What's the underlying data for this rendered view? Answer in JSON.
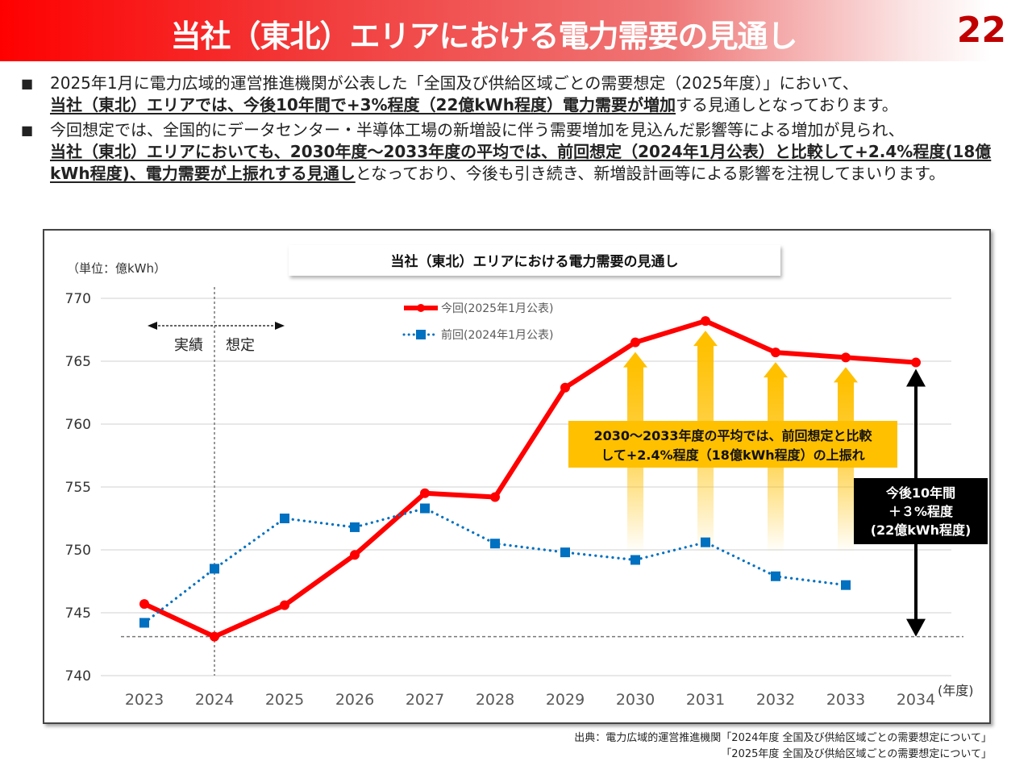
{
  "header": {
    "title": "当社（東北）エリアにおける電力需要の見通し",
    "page_number": "22",
    "gradient_start_color": "#ff0000",
    "page_number_color": "#c00000"
  },
  "bullets": [
    {
      "marker": "■",
      "segments": [
        {
          "text": "2025年1月に電力広域的運営推進機関が公表した「全国及び供給区域ごとの需要想定（2025年度）」において、",
          "strong": false
        },
        {
          "text": "当社（東北）エリアでは、今後10年間で+3%程度（22億kWh程度）電力需要が増加",
          "strong": true
        },
        {
          "text": "する見通しとなっております。",
          "strong": false
        }
      ]
    },
    {
      "marker": "■",
      "segments": [
        {
          "text": "今回想定では、全国的にデータセンター・半導体工場の新増設に伴う需要増加を見込んだ影響等による増加が見られ、",
          "strong": false
        },
        {
          "text": "当社（東北）エリアにおいても、2030年度～2033年度の平均では、前回想定（2024年1月公表）と比較して+2.4%程度(18億kWh程度)、電力需要が上振れする見通し",
          "strong": true
        },
        {
          "text": "となっており、今後も引き続き、新増設計画等による影響を注視してまいります。",
          "strong": false
        }
      ]
    }
  ],
  "chart_data": {
    "type": "line",
    "title": "当社（東北）エリアにおける電力需要の見通し",
    "unit_label": "（単位：億kWh）",
    "xlabel": "(年度)",
    "ylabel": "",
    "categories": [
      "2023",
      "2024",
      "2025",
      "2026",
      "2027",
      "2028",
      "2029",
      "2030",
      "2031",
      "2032",
      "2033",
      "2034"
    ],
    "ylim": [
      740,
      770
    ],
    "yticks": [
      740,
      745,
      750,
      755,
      760,
      765,
      770
    ],
    "grid": true,
    "legend_position": "top-center",
    "series": [
      {
        "name": "今回(2025年1月公表)",
        "color": "#ff0000",
        "style": "solid",
        "marker": "circle",
        "values": [
          745.7,
          743.1,
          745.6,
          749.6,
          754.5,
          754.2,
          762.9,
          766.5,
          768.2,
          765.7,
          765.3,
          764.9
        ]
      },
      {
        "name": "前回(2024年1月公表)",
        "color": "#0070c0",
        "style": "dotted",
        "marker": "square",
        "values": [
          744.2,
          748.5,
          752.5,
          751.8,
          753.3,
          750.5,
          749.8,
          749.2,
          750.6,
          747.9,
          747.2,
          null
        ]
      }
    ],
    "divider": {
      "between": "2024",
      "left_label": "実績",
      "right_label": "想定"
    },
    "baseline_reference": 743.1,
    "annotations": [
      {
        "id": "upward-revision",
        "text_lines": [
          "2030～2033年度の平均では、前回想定と比較",
          "して+2.4%程度（18億kWh程度）の上振れ"
        ],
        "background": "#ffc000",
        "arrow_years": [
          "2030",
          "2031",
          "2032",
          "2033"
        ]
      },
      {
        "id": "ten-year-growth",
        "text_lines": [
          "今後10年間",
          "＋３%程度",
          "(22億kWh程度)"
        ],
        "background": "#000000",
        "text_color": "#ffffff",
        "arrow_year": "2034"
      }
    ]
  },
  "source": {
    "lines": [
      "出典：電力広域的運営推進機関「2024年度 全国及び供給区域ごとの需要想定について」",
      "「2025年度 全国及び供給区域ごとの需要想定について」"
    ]
  }
}
